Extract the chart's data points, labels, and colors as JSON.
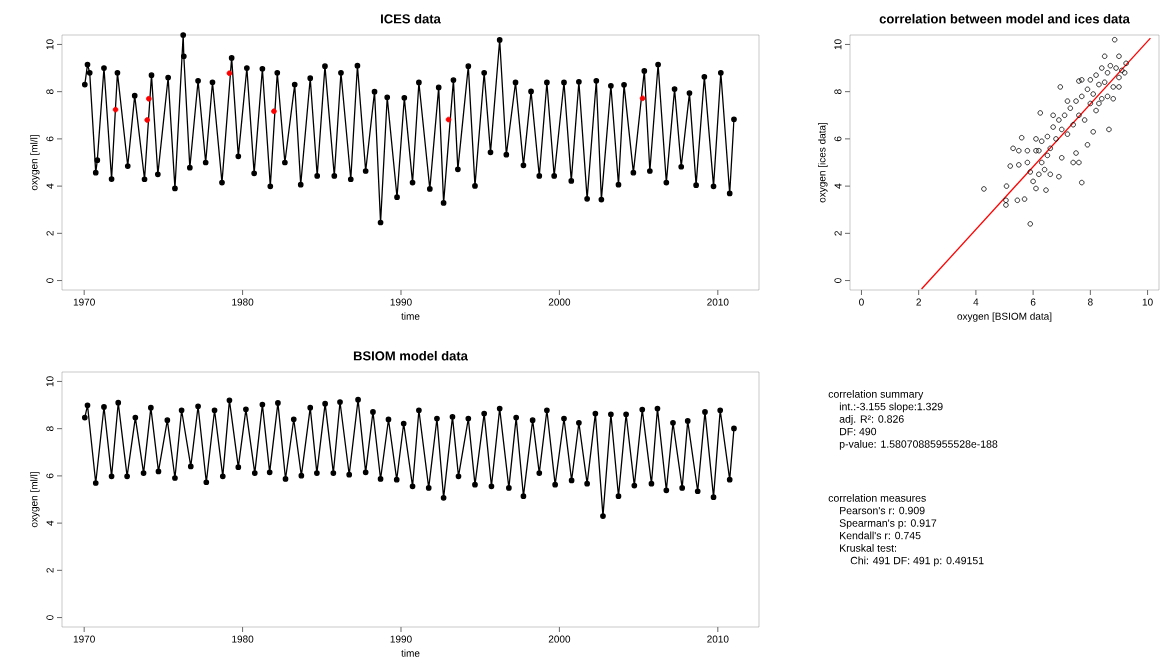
{
  "chart_data": [
    {
      "type": "line",
      "title": "ICES data",
      "xlabel": "time",
      "ylabel": "oxygen [ml/l]",
      "xlim": [
        1968.6,
        2012.6
      ],
      "ylim": [
        -0.4,
        10.4
      ],
      "xticks": [
        1970,
        1980,
        1990,
        2000,
        2010
      ],
      "yticks": [
        0,
        2,
        4,
        6,
        8,
        10
      ],
      "marker": "circle",
      "grid": false,
      "series": [
        {
          "color": "#000000",
          "x": [
            1970.04,
            1970.21,
            1970.35,
            1970.73,
            1970.83,
            1971.25,
            1971.73,
            1972.1,
            1972.75,
            1973.19,
            1973.81,
            1974.25,
            1974.65,
            1975.3,
            1975.73,
            1976.25,
            1976.29,
            1976.67,
            1977.19,
            1977.67,
            1978.1,
            1978.7,
            1979.31,
            1979.73,
            1980.27,
            1980.73,
            1981.25,
            1981.75,
            1982.19,
            1982.67,
            1983.29,
            1983.67,
            1984.27,
            1984.71,
            1985.2,
            1985.79,
            1986.21,
            1986.83,
            1987.25,
            1987.77,
            1988.33,
            1988.71,
            1989.13,
            1989.75,
            1990.21,
            1990.73,
            1991.13,
            1991.82,
            1992.38,
            1992.69,
            1993.31,
            1993.59,
            1994.25,
            1994.67,
            1995.25,
            1995.65,
            1996.23,
            1996.65,
            1997.23,
            1997.73,
            1998.21,
            1998.73,
            1999.21,
            1999.67,
            2000.29,
            2000.75,
            2001.23,
            2001.75,
            2002.33,
            2002.65,
            2003.25,
            2003.73,
            2004.08,
            2004.67,
            2005.36,
            2005.71,
            2006.23,
            2006.75,
            2007.27,
            2007.69,
            2008.21,
            2008.63,
            2009.15,
            2009.73,
            2010.19,
            2010.75,
            2011.02
          ],
          "values": [
            8.3,
            9.15,
            8.8,
            4.57,
            5.1,
            9.0,
            4.3,
            8.8,
            4.85,
            7.83,
            4.29,
            8.7,
            4.5,
            8.6,
            3.9,
            10.4,
            9.5,
            4.78,
            8.46,
            5.0,
            8.4,
            4.15,
            9.43,
            5.26,
            9.0,
            4.54,
            8.97,
            3.99,
            8.8,
            5.0,
            8.3,
            4.06,
            8.57,
            4.43,
            9.08,
            4.43,
            8.8,
            4.29,
            9.1,
            4.64,
            8.0,
            2.46,
            7.76,
            3.53,
            7.74,
            4.15,
            8.39,
            3.88,
            8.18,
            3.29,
            8.49,
            4.71,
            9.08,
            4.01,
            8.8,
            5.43,
            10.19,
            5.33,
            8.39,
            4.88,
            8.01,
            4.43,
            8.39,
            4.43,
            8.39,
            4.22,
            8.42,
            3.46,
            8.46,
            3.43,
            8.25,
            4.06,
            8.29,
            4.57,
            8.88,
            4.64,
            9.15,
            4.15,
            8.11,
            4.82,
            7.94,
            4.04,
            8.63,
            3.99,
            8.8,
            3.69,
            6.83
          ]
        },
        {
          "type": "scatter",
          "color": "#ff0000",
          "x": [
            1971.98,
            1973.98,
            1974.08,
            1979.17,
            1981.98,
            1993.0,
            2005.25
          ],
          "values": [
            7.24,
            6.8,
            7.7,
            8.78,
            7.17,
            6.82,
            7.72
          ]
        }
      ]
    },
    {
      "type": "scatter",
      "title": "correlation between model and ices data",
      "xlabel": "oxygen [BSIOM data]",
      "ylabel": "oxygen [ices data]",
      "xlim": [
        -0.4,
        10.4
      ],
      "ylim": [
        -0.4,
        10.4
      ],
      "xticks": [
        0,
        2,
        4,
        6,
        8,
        10
      ],
      "yticks": [
        0,
        2,
        4,
        6,
        8,
        10
      ],
      "marker": "circle",
      "grid": false,
      "series": [
        {
          "color": "#000000",
          "x": [
            4.28,
            5.05,
            5.05,
            5.07,
            5.9,
            5.45,
            5.7,
            6.45,
            5.6,
            6.25,
            6.95,
            7.7,
            7.6,
            8.65,
            8.85,
            8.5,
            9.0,
            9.25,
            8.1,
            7.9,
            7.6,
            6.1,
            5.5,
            5.2,
            5.3,
            5.5,
            5.8,
            5.9,
            6.0,
            6.1,
            6.2,
            6.3,
            6.4,
            6.5,
            6.6,
            6.5,
            6.7,
            6.8,
            6.9,
            7.0,
            7.0,
            7.1,
            7.2,
            7.3,
            7.4,
            7.5,
            7.5,
            7.6,
            7.7,
            7.8,
            7.9,
            8.0,
            8.0,
            8.1,
            8.2,
            8.2,
            8.3,
            8.4,
            8.4,
            8.5,
            8.6,
            8.6,
            8.7,
            8.8,
            8.8,
            8.9,
            9.0,
            9.1,
            9.2,
            9.0,
            8.3,
            7.7,
            6.3,
            6.6,
            6.2,
            6.9,
            7.4,
            5.8,
            6.1,
            6.7,
            7.2
          ],
          "values": [
            3.88,
            3.2,
            3.4,
            4.0,
            2.4,
            3.4,
            3.45,
            3.83,
            6.05,
            7.1,
            8.2,
            4.15,
            5.0,
            6.4,
            10.2,
            9.5,
            9.5,
            9.2,
            6.3,
            5.75,
            8.45,
            5.5,
            4.9,
            4.85,
            5.6,
            5.5,
            5.0,
            4.6,
            4.2,
            3.9,
            4.5,
            5.0,
            4.7,
            5.3,
            5.6,
            6.1,
            6.5,
            6.0,
            6.8,
            5.2,
            6.4,
            7.0,
            6.2,
            7.3,
            6.6,
            7.6,
            5.4,
            7.0,
            7.8,
            6.8,
            8.1,
            7.5,
            8.5,
            7.9,
            8.7,
            7.2,
            8.3,
            9.0,
            7.7,
            8.4,
            8.8,
            7.8,
            9.1,
            8.2,
            7.7,
            9.0,
            8.6,
            8.9,
            8.8,
            8.2,
            7.5,
            8.5,
            5.9,
            4.5,
            5.5,
            4.4,
            5.0,
            5.5,
            6.0,
            7.0,
            7.6
          ]
        },
        {
          "type": "line",
          "color": "#ff0000",
          "marker": "none",
          "x": [
            2.1,
            10.1
          ],
          "values": [
            -0.36,
            10.27
          ]
        }
      ]
    },
    {
      "type": "line",
      "title": "BSIOM model data",
      "xlabel": "time",
      "ylabel": "oxygen [ml/l]",
      "xlim": [
        1968.6,
        2012.6
      ],
      "ylim": [
        -0.4,
        10.4
      ],
      "xticks": [
        1970,
        1980,
        1990,
        2000,
        2010
      ],
      "yticks": [
        0,
        2,
        4,
        6,
        8,
        10
      ],
      "marker": "circle",
      "grid": false,
      "series": [
        {
          "color": "#000000",
          "x": [
            1970.04,
            1970.21,
            1970.73,
            1971.25,
            1971.73,
            1972.15,
            1972.71,
            1973.23,
            1973.75,
            1974.21,
            1974.69,
            1975.25,
            1975.73,
            1976.15,
            1976.73,
            1977.19,
            1977.71,
            1978.23,
            1978.75,
            1979.17,
            1979.73,
            1980.21,
            1980.77,
            1981.25,
            1981.71,
            1982.23,
            1982.71,
            1983.23,
            1983.71,
            1984.27,
            1984.69,
            1985.21,
            1985.73,
            1986.15,
            1986.73,
            1987.29,
            1987.77,
            1988.23,
            1988.71,
            1989.21,
            1989.73,
            1990.17,
            1990.73,
            1991.13,
            1991.75,
            1992.27,
            1992.69,
            1993.25,
            1993.63,
            1994.25,
            1994.67,
            1995.25,
            1995.71,
            1996.23,
            1996.81,
            1997.27,
            1997.73,
            1998.31,
            1998.73,
            1999.21,
            1999.73,
            2000.29,
            2000.77,
            2001.23,
            2001.75,
            2002.27,
            2002.75,
            2003.25,
            2003.73,
            2004.21,
            2004.73,
            2005.23,
            2005.81,
            2006.19,
            2006.75,
            2007.17,
            2007.75,
            2008.1,
            2008.73,
            2009.19,
            2009.73,
            2010.15,
            2010.75,
            2011.02
          ],
          "values": [
            8.47,
            8.99,
            5.7,
            8.92,
            5.98,
            9.1,
            5.98,
            8.47,
            6.12,
            8.89,
            6.19,
            8.36,
            5.91,
            8.78,
            6.4,
            8.95,
            5.73,
            8.78,
            5.98,
            9.2,
            6.37,
            8.82,
            6.12,
            9.02,
            6.15,
            9.09,
            5.87,
            8.4,
            6.01,
            8.89,
            6.12,
            9.06,
            6.12,
            9.13,
            6.05,
            9.23,
            6.15,
            8.71,
            5.87,
            8.39,
            5.84,
            8.22,
            5.56,
            8.78,
            5.49,
            8.43,
            5.07,
            8.5,
            5.98,
            8.43,
            5.63,
            8.64,
            5.56,
            8.85,
            5.49,
            8.47,
            5.14,
            8.36,
            6.12,
            8.78,
            5.63,
            8.43,
            5.81,
            8.25,
            5.67,
            8.64,
            4.3,
            8.61,
            5.14,
            8.61,
            5.59,
            8.81,
            5.67,
            8.85,
            5.39,
            8.25,
            5.49,
            8.33,
            5.35,
            8.71,
            5.1,
            8.78,
            5.84,
            8.01
          ]
        }
      ]
    },
    {
      "type": "other",
      "title": "correlation summary",
      "annotations": [
        "int.:-3.155  slope:1.329",
        "adj. R²: 0.826",
        "DF: 490",
        "p-value: 1.58070885955528e-188"
      ]
    },
    {
      "type": "other",
      "title": "correlation measures",
      "annotations": [
        "Pearson's r:  0.909",
        "Spearman's p:  0.917",
        "Kendall's r:  0.745",
        "Kruskal test:",
        "Chi: 491  DF: 491  p: 0.49151"
      ]
    }
  ]
}
